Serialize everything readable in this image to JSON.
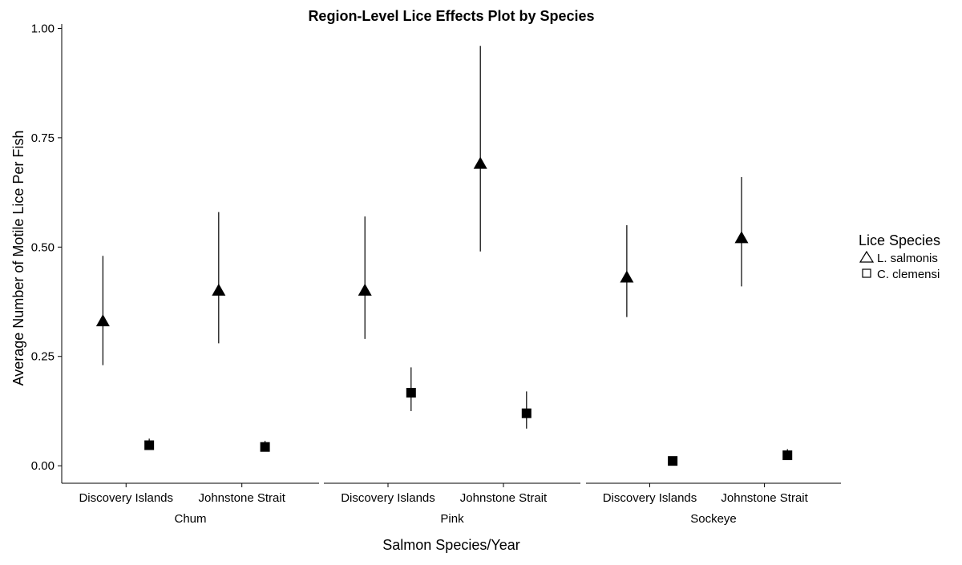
{
  "chart_data": {
    "type": "scatter",
    "title": "Region-Level Lice Effects Plot by Species",
    "xlabel": "Salmon Species/Year",
    "ylabel": "Average Number of Motile Lice Per Fish",
    "ylim": [
      -0.04,
      1.01
    ],
    "yticks": [
      0,
      0.25,
      0.5,
      0.75,
      1.0
    ],
    "ytick_labels": [
      "0.00",
      "0.25",
      "0.50",
      "0.75",
      "1.00"
    ],
    "grid": false,
    "legend_position": "right",
    "legend_title": "Lice Species",
    "facets": [
      "Chum",
      "Pink",
      "Sockeye"
    ],
    "categories": [
      "Discovery Islands",
      "Johnstone Strait"
    ],
    "series": [
      {
        "name": "L. salmonis",
        "marker": "triangle",
        "points": [
          {
            "facet": "Chum",
            "region": "Discovery Islands",
            "y": 0.33,
            "lo": 0.23,
            "hi": 0.48
          },
          {
            "facet": "Chum",
            "region": "Johnstone Strait",
            "y": 0.4,
            "lo": 0.28,
            "hi": 0.58
          },
          {
            "facet": "Pink",
            "region": "Discovery Islands",
            "y": 0.4,
            "lo": 0.29,
            "hi": 0.57
          },
          {
            "facet": "Pink",
            "region": "Johnstone Strait",
            "y": 0.69,
            "lo": 0.49,
            "hi": 0.96
          },
          {
            "facet": "Sockeye",
            "region": "Discovery Islands",
            "y": 0.43,
            "lo": 0.34,
            "hi": 0.55
          },
          {
            "facet": "Sockeye",
            "region": "Johnstone Strait",
            "y": 0.52,
            "lo": 0.41,
            "hi": 0.66
          }
        ]
      },
      {
        "name": "C. clemensi",
        "marker": "square",
        "points": [
          {
            "facet": "Chum",
            "region": "Discovery Islands",
            "y": 0.047,
            "lo": 0.037,
            "hi": 0.062
          },
          {
            "facet": "Chum",
            "region": "Johnstone Strait",
            "y": 0.043,
            "lo": 0.034,
            "hi": 0.057
          },
          {
            "facet": "Pink",
            "region": "Discovery Islands",
            "y": 0.167,
            "lo": 0.125,
            "hi": 0.225
          },
          {
            "facet": "Pink",
            "region": "Johnstone Strait",
            "y": 0.12,
            "lo": 0.085,
            "hi": 0.17
          },
          {
            "facet": "Sockeye",
            "region": "Discovery Islands",
            "y": 0.011,
            "lo": 0.006,
            "hi": 0.016
          },
          {
            "facet": "Sockeye",
            "region": "Johnstone Strait",
            "y": 0.024,
            "lo": 0.016,
            "hi": 0.038
          }
        ]
      }
    ]
  }
}
